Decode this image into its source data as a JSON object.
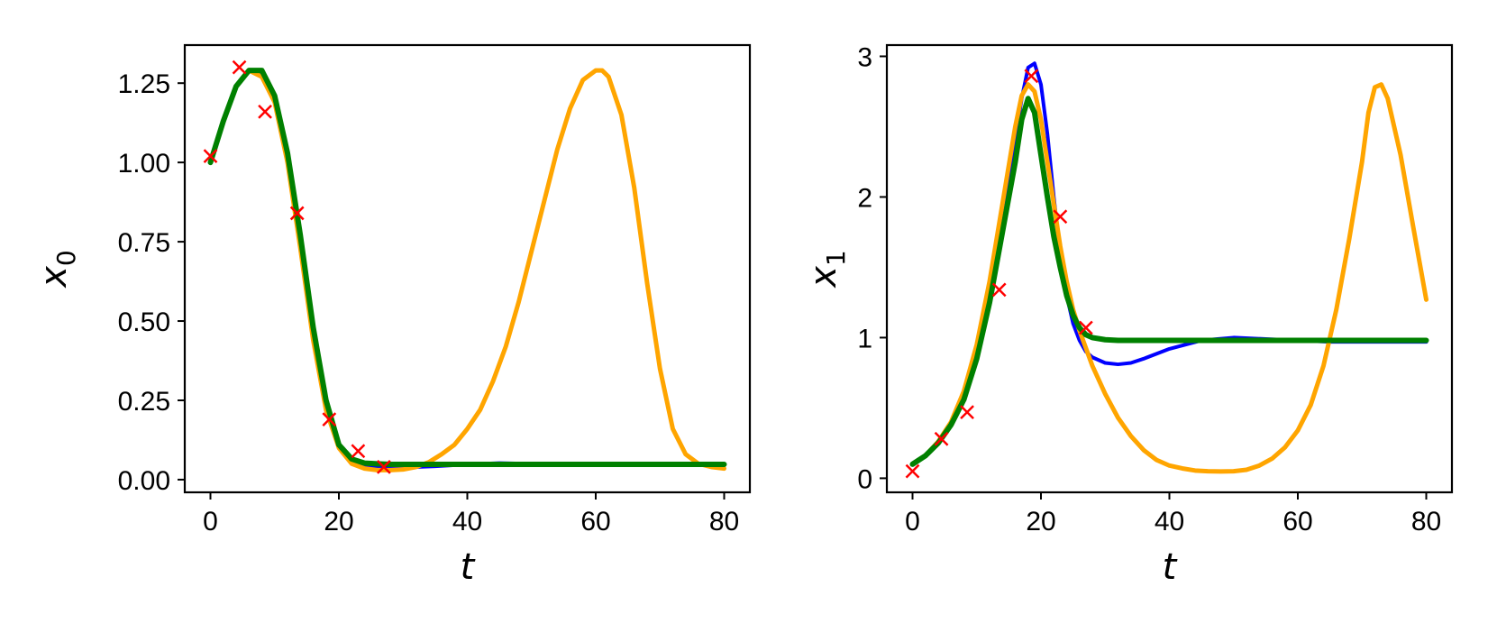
{
  "colors": {
    "blue": "#0000ff",
    "orange": "#ffa500",
    "green": "#008000",
    "marker": "#ff0000"
  },
  "chart_data": [
    {
      "type": "line",
      "xlabel": "t",
      "ylabel": "x",
      "ylabel_sub": "0",
      "xlim": [
        -4,
        84
      ],
      "ylim": [
        -0.04,
        1.37
      ],
      "xticks": [
        0,
        20,
        40,
        60,
        80
      ],
      "xtick_labels": [
        "0",
        "20",
        "40",
        "60",
        "80"
      ],
      "yticks": [
        0.0,
        0.25,
        0.5,
        0.75,
        1.0,
        1.25
      ],
      "ytick_labels": [
        "0.00",
        "0.25",
        "0.50",
        "0.75",
        "1.00",
        "1.25"
      ],
      "grid": false,
      "series": [
        {
          "color": "blue",
          "width": 4,
          "x": [
            0,
            2,
            4,
            6,
            8,
            10,
            12,
            14,
            16,
            18,
            20,
            22,
            24,
            26,
            28,
            30,
            35,
            40,
            45,
            50,
            55,
            60,
            65,
            70,
            75,
            80
          ],
          "y": [
            1.0,
            1.13,
            1.24,
            1.29,
            1.28,
            1.2,
            1.02,
            0.76,
            0.47,
            0.25,
            0.11,
            0.06,
            0.045,
            0.04,
            0.038,
            0.038,
            0.042,
            0.048,
            0.052,
            0.05,
            0.049,
            0.048,
            0.049,
            0.05,
            0.05,
            0.05
          ]
        },
        {
          "color": "orange",
          "width": 5,
          "x": [
            0,
            2,
            4,
            6,
            8,
            10,
            12,
            14,
            16,
            18,
            20,
            22,
            24,
            26,
            28,
            30,
            32,
            34,
            36,
            38,
            40,
            42,
            44,
            46,
            48,
            50,
            52,
            54,
            56,
            58,
            60,
            61,
            62,
            64,
            66,
            68,
            70,
            72,
            74,
            76,
            78,
            80
          ],
          "y": [
            1.0,
            1.13,
            1.24,
            1.29,
            1.27,
            1.19,
            1.0,
            0.73,
            0.44,
            0.22,
            0.1,
            0.05,
            0.035,
            0.03,
            0.03,
            0.032,
            0.04,
            0.055,
            0.08,
            0.11,
            0.16,
            0.22,
            0.31,
            0.42,
            0.56,
            0.72,
            0.88,
            1.04,
            1.17,
            1.26,
            1.29,
            1.29,
            1.27,
            1.15,
            0.92,
            0.62,
            0.35,
            0.16,
            0.08,
            0.05,
            0.04,
            0.035
          ]
        },
        {
          "color": "green",
          "width": 6,
          "x": [
            0,
            2,
            4,
            6,
            8,
            10,
            12,
            14,
            16,
            18,
            20,
            22,
            24,
            26,
            28,
            30,
            35,
            40,
            45,
            50,
            55,
            60,
            65,
            70,
            75,
            80
          ],
          "y": [
            1.0,
            1.13,
            1.24,
            1.29,
            1.29,
            1.21,
            1.03,
            0.77,
            0.48,
            0.25,
            0.11,
            0.065,
            0.052,
            0.05,
            0.048,
            0.048,
            0.048,
            0.048,
            0.048,
            0.048,
            0.048,
            0.048,
            0.048,
            0.048,
            0.048,
            0.048
          ]
        }
      ],
      "markers": {
        "color": "marker",
        "x": [
          0,
          4.5,
          8.5,
          13.5,
          18.5,
          23,
          27
        ],
        "y": [
          1.02,
          1.3,
          1.16,
          0.84,
          0.19,
          0.09,
          0.04
        ]
      }
    },
    {
      "type": "line",
      "xlabel": "t",
      "ylabel": "x",
      "ylabel_sub": "1",
      "xlim": [
        -4,
        84
      ],
      "ylim": [
        -0.1,
        3.08
      ],
      "xticks": [
        0,
        20,
        40,
        60,
        80
      ],
      "xtick_labels": [
        "0",
        "20",
        "40",
        "60",
        "80"
      ],
      "yticks": [
        0,
        1,
        2,
        3
      ],
      "ytick_labels": [
        "0",
        "1",
        "2",
        "3"
      ],
      "grid": false,
      "series": [
        {
          "color": "blue",
          "width": 4,
          "x": [
            0,
            2,
            4,
            6,
            8,
            10,
            12,
            14,
            16,
            17,
            18,
            19,
            20,
            21,
            22,
            23,
            24,
            25,
            26,
            27,
            28,
            30,
            32,
            34,
            36,
            40,
            45,
            50,
            55,
            60,
            65,
            70,
            75,
            80
          ],
          "y": [
            0.1,
            0.16,
            0.25,
            0.38,
            0.58,
            0.88,
            1.3,
            1.85,
            2.4,
            2.7,
            2.92,
            2.95,
            2.8,
            2.45,
            2.0,
            1.6,
            1.3,
            1.1,
            0.98,
            0.9,
            0.86,
            0.82,
            0.81,
            0.82,
            0.85,
            0.92,
            0.98,
            1.0,
            0.99,
            0.98,
            0.97,
            0.97,
            0.97,
            0.97
          ]
        },
        {
          "color": "orange",
          "width": 5,
          "x": [
            0,
            2,
            4,
            6,
            8,
            10,
            12,
            14,
            16,
            17,
            18,
            19,
            20,
            21,
            22,
            23,
            24,
            25,
            26,
            28,
            30,
            32,
            34,
            36,
            38,
            40,
            42,
            44,
            46,
            48,
            50,
            52,
            54,
            56,
            58,
            60,
            62,
            64,
            66,
            68,
            70,
            71,
            72,
            73,
            74,
            76,
            78,
            80
          ],
          "y": [
            0.1,
            0.16,
            0.26,
            0.4,
            0.62,
            0.95,
            1.4,
            1.95,
            2.5,
            2.72,
            2.8,
            2.75,
            2.55,
            2.25,
            1.95,
            1.65,
            1.4,
            1.2,
            1.05,
            0.8,
            0.6,
            0.43,
            0.3,
            0.2,
            0.13,
            0.09,
            0.07,
            0.055,
            0.05,
            0.048,
            0.05,
            0.06,
            0.09,
            0.14,
            0.22,
            0.34,
            0.52,
            0.8,
            1.2,
            1.7,
            2.25,
            2.6,
            2.78,
            2.8,
            2.7,
            2.3,
            1.78,
            1.27
          ]
        },
        {
          "color": "green",
          "width": 6,
          "x": [
            0,
            2,
            4,
            6,
            8,
            10,
            12,
            14,
            16,
            17,
            18,
            19,
            20,
            21,
            22,
            23,
            24,
            25,
            26,
            27,
            28,
            30,
            32,
            35,
            40,
            45,
            50,
            55,
            60,
            65,
            70,
            75,
            80
          ],
          "y": [
            0.1,
            0.16,
            0.25,
            0.38,
            0.56,
            0.85,
            1.25,
            1.75,
            2.25,
            2.55,
            2.7,
            2.6,
            2.3,
            2.0,
            1.72,
            1.5,
            1.3,
            1.16,
            1.07,
            1.02,
            1.0,
            0.985,
            0.98,
            0.98,
            0.98,
            0.98,
            0.98,
            0.98,
            0.98,
            0.98,
            0.98,
            0.98,
            0.98
          ]
        }
      ],
      "markers": {
        "color": "marker",
        "x": [
          0,
          4.5,
          8.5,
          13.5,
          18.5,
          23,
          27
        ],
        "y": [
          0.05,
          0.28,
          0.47,
          1.34,
          2.86,
          1.86,
          1.07
        ]
      }
    }
  ]
}
